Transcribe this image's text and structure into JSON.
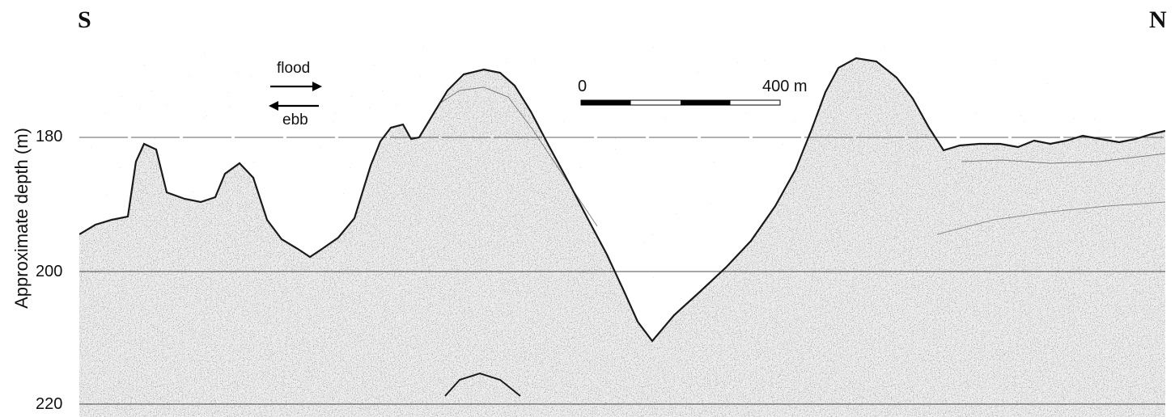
{
  "direction": {
    "left": "S",
    "right": "N"
  },
  "y_axis": {
    "label": "Approximate depth (m)",
    "ticks": [
      "180",
      "200",
      "220"
    ]
  },
  "legend": {
    "flood_label": "flood",
    "ebb_label": "ebb"
  },
  "scale_bar": {
    "start_label": "0",
    "end_label": "400 m"
  }
}
